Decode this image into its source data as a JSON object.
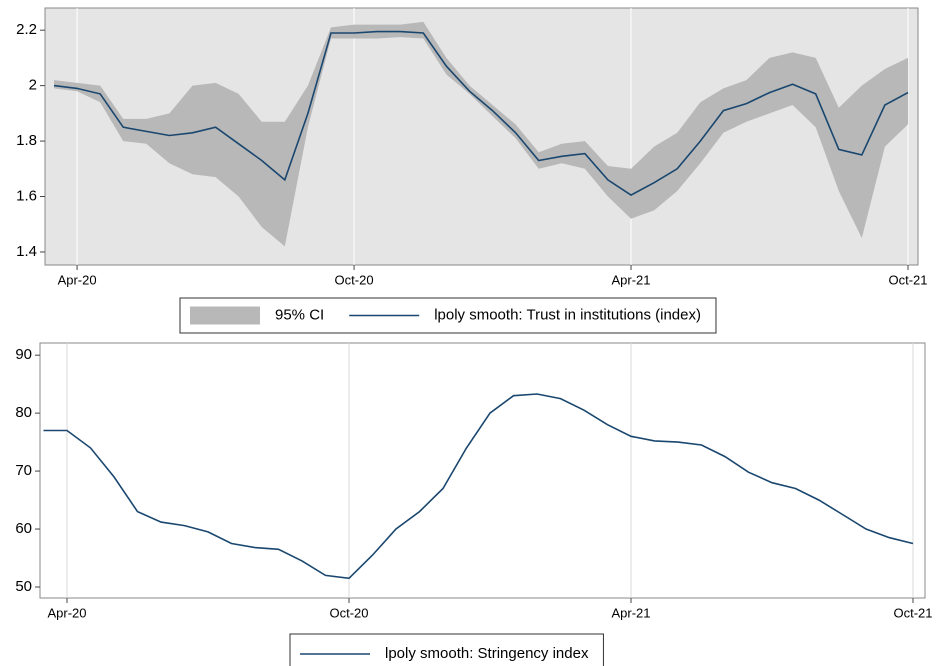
{
  "chart_data": [
    {
      "type": "line",
      "categories": [
        null,
        "Apr-20",
        null,
        null,
        null,
        null,
        null,
        null,
        null,
        null,
        null,
        null,
        null,
        "Oct-20",
        null,
        null,
        null,
        null,
        null,
        null,
        null,
        null,
        null,
        null,
        null,
        "Apr-21",
        null,
        null,
        null,
        null,
        null,
        null,
        null,
        null,
        null,
        null,
        null,
        "Oct-21"
      ],
      "series": [
        {
          "name": "95% CI",
          "color": "#b8b8b8",
          "lower": [
            1.99,
            1.98,
            1.94,
            1.8,
            1.79,
            1.72,
            1.68,
            1.67,
            1.6,
            1.49,
            1.42,
            1.85,
            2.17,
            2.17,
            2.17,
            2.175,
            2.17,
            2.04,
            1.97,
            1.89,
            1.81,
            1.7,
            1.72,
            1.7,
            1.6,
            1.52,
            1.55,
            1.62,
            1.72,
            1.83,
            1.87,
            1.9,
            1.93,
            1.85,
            1.62,
            1.45,
            1.78,
            1.86
          ],
          "upper": [
            2.02,
            2.01,
            2.0,
            1.88,
            1.88,
            1.9,
            2.0,
            2.01,
            1.97,
            1.87,
            1.87,
            2.0,
            2.21,
            2.22,
            2.22,
            2.22,
            2.23,
            2.1,
            2.0,
            1.93,
            1.86,
            1.76,
            1.79,
            1.8,
            1.71,
            1.7,
            1.78,
            1.83,
            1.94,
            1.99,
            2.02,
            2.1,
            2.12,
            2.1,
            1.92,
            2.0,
            2.06,
            2.1
          ]
        },
        {
          "name": "lpoly smooth: Trust in institutions (index)",
          "color": "#1a476f",
          "values": [
            2.0,
            1.99,
            1.97,
            1.85,
            1.835,
            1.82,
            1.83,
            1.85,
            1.79,
            1.73,
            1.66,
            1.9,
            2.19,
            2.19,
            2.195,
            2.195,
            2.19,
            2.07,
            1.98,
            1.91,
            1.83,
            1.73,
            1.745,
            1.755,
            1.66,
            1.605,
            1.65,
            1.7,
            1.8,
            1.91,
            1.935,
            1.975,
            2.005,
            1.97,
            1.77,
            1.75,
            1.93,
            1.975
          ]
        }
      ],
      "ylim": [
        1.353,
        2.28
      ],
      "yticks": [
        1.4,
        1.6,
        1.8,
        2,
        2.2
      ],
      "grid": "x",
      "legend": "bottom"
    },
    {
      "type": "line",
      "categories": [
        null,
        "Apr-20",
        null,
        null,
        null,
        null,
        null,
        null,
        null,
        null,
        null,
        null,
        null,
        "Oct-20",
        null,
        null,
        null,
        null,
        null,
        null,
        null,
        null,
        null,
        null,
        null,
        "Apr-21",
        null,
        null,
        null,
        null,
        null,
        null,
        null,
        null,
        null,
        null,
        null,
        "Oct-21"
      ],
      "series": [
        {
          "name": "lpoly smooth: Stringency index",
          "color": "#1a476f",
          "values": [
            77,
            77,
            74,
            69,
            63,
            61.2,
            60.6,
            59.5,
            57.5,
            56.8,
            56.5,
            54.5,
            52,
            51.5,
            55.5,
            60,
            63,
            67,
            74,
            80,
            83,
            83.3,
            82.5,
            80.5,
            78,
            76,
            75.2,
            75,
            74.5,
            72.5,
            69.8,
            68,
            67,
            65,
            62.5,
            60,
            58.5,
            57.5
          ]
        }
      ],
      "ylim": [
        48.1,
        92.1
      ],
      "yticks": [
        50,
        60,
        70,
        80,
        90
      ],
      "grid": "x",
      "legend": "bottom"
    }
  ]
}
